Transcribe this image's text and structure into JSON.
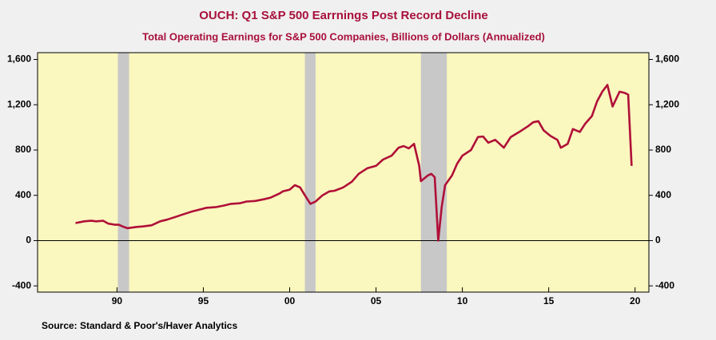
{
  "chart_data": {
    "type": "line",
    "title": "OUCH: Q1 S&P 500 Earrnings Post Record Decline",
    "subtitle": "Total Operating Earnings for S&P 500 Companies, Billions of Dollars (Annualized)",
    "source": "Source:  Standard & Poor's/Haver Analytics",
    "x": [
      1987.6,
      1988.1,
      1988.5,
      1988.8,
      1989.2,
      1989.5,
      1989.9,
      1990.1,
      1990.4,
      1990.6,
      1991.1,
      1991.5,
      1992.0,
      1992.5,
      1992.9,
      1993.4,
      1993.8,
      1994.3,
      1994.8,
      1995.2,
      1995.7,
      1996.2,
      1996.6,
      1997.1,
      1997.5,
      1998.0,
      1998.5,
      1998.9,
      1999.4,
      1999.6,
      2000.0,
      2000.3,
      2000.6,
      2000.9,
      2001.2,
      2001.5,
      2001.9,
      2002.3,
      2002.6,
      2003.1,
      2003.6,
      2004.0,
      2004.5,
      2005.0,
      2005.4,
      2005.9,
      2006.3,
      2006.6,
      2006.9,
      2007.2,
      2007.5,
      2007.6,
      2008.0,
      2008.2,
      2008.4,
      2008.6,
      2008.8,
      2009.0,
      2009.4,
      2009.7,
      2010.0,
      2010.5,
      2010.9,
      2011.2,
      2011.5,
      2011.9,
      2012.4,
      2012.8,
      2013.3,
      2013.8,
      2014.1,
      2014.4,
      2014.7,
      2015.1,
      2015.5,
      2015.7,
      2016.1,
      2016.4,
      2016.8,
      2017.1,
      2017.5,
      2017.8,
      2018.1,
      2018.4,
      2018.7,
      2019.1,
      2019.4,
      2019.6,
      2019.8
    ],
    "series": [
      {
        "name": "Total Operating Earnings",
        "color": "#b01038",
        "values": [
          155,
          170,
          175,
          170,
          175,
          150,
          140,
          140,
          120,
          110,
          120,
          125,
          135,
          170,
          185,
          210,
          230,
          255,
          275,
          290,
          295,
          310,
          325,
          330,
          345,
          350,
          365,
          380,
          415,
          435,
          450,
          490,
          470,
          395,
          325,
          345,
          400,
          435,
          440,
          470,
          520,
          590,
          640,
          660,
          715,
          750,
          820,
          835,
          815,
          855,
          660,
          525,
          575,
          590,
          560,
          0,
          295,
          490,
          575,
          680,
          750,
          800,
          915,
          920,
          865,
          890,
          820,
          915,
          960,
          1010,
          1045,
          1055,
          975,
          925,
          890,
          820,
          855,
          985,
          960,
          1030,
          1100,
          1230,
          1315,
          1375,
          1185,
          1315,
          1305,
          1290,
          660
        ]
      }
    ],
    "recessions": [
      [
        1990.05,
        1990.7
      ],
      [
        2000.88,
        2001.5
      ],
      [
        2007.6,
        2009.1
      ]
    ],
    "xlim": [
      1985.4,
      2020.8
    ],
    "xticks": [
      {
        "value": 1990,
        "label": "90"
      },
      {
        "value": 1995,
        "label": "95"
      },
      {
        "value": 2000,
        "label": "00"
      },
      {
        "value": 2005,
        "label": "05"
      },
      {
        "value": 2010,
        "label": "10"
      },
      {
        "value": 2015,
        "label": "15"
      },
      {
        "value": 2020,
        "label": "20"
      }
    ],
    "ylim": [
      -455,
      1660
    ],
    "yticks": [
      -400,
      0,
      400,
      800,
      {
        "value": 1200,
        "label": "1,200"
      },
      {
        "value": 1600,
        "label": "1,600"
      }
    ],
    "y2lim": [
      -455,
      1660
    ],
    "y2ticks": [
      -400,
      0,
      400,
      800,
      {
        "value": 1200,
        "label": "1,200"
      },
      {
        "value": 1600,
        "label": "1,600"
      }
    ]
  }
}
